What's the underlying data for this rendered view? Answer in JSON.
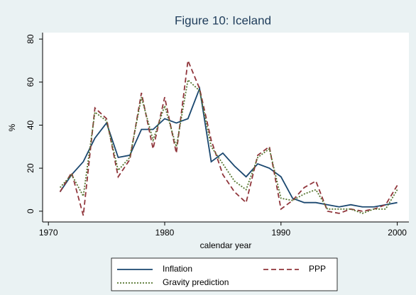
{
  "chart_data": {
    "type": "line",
    "title": "Figure 10: Iceland",
    "x_label": "calendar year",
    "y_label": "%",
    "x": [
      1971,
      1972,
      1973,
      1974,
      1975,
      1976,
      1977,
      1978,
      1979,
      1980,
      1981,
      1982,
      1983,
      1984,
      1985,
      1986,
      1987,
      1988,
      1989,
      1990,
      1991,
      1992,
      1993,
      1994,
      1995,
      1996,
      1997,
      1998,
      1999,
      2000
    ],
    "series": [
      {
        "name": "Inflation",
        "color": "#1a476f",
        "dash": "none",
        "values": [
          9,
          17,
          23,
          34,
          41,
          25,
          26,
          38,
          38,
          43,
          41,
          43,
          57,
          23,
          27,
          21,
          16,
          22,
          20,
          16,
          6,
          4,
          4,
          3,
          2,
          3,
          2,
          2,
          3,
          4
        ]
      },
      {
        "name": "PPP",
        "color": "#90353b",
        "dash": "7 4",
        "values": [
          9,
          18,
          -2,
          48,
          43,
          16,
          24,
          55,
          29,
          53,
          27,
          70,
          57,
          33,
          17,
          9,
          4,
          26,
          30,
          1,
          5,
          11,
          14,
          0,
          -1,
          1,
          0,
          1,
          3,
          12
        ]
      },
      {
        "name": "Gravity prediction",
        "color": "#55752f",
        "dash": "2 2",
        "values": [
          11,
          17,
          7,
          46,
          42,
          19,
          25,
          53,
          33,
          49,
          30,
          61,
          56,
          30,
          22,
          14,
          10,
          25,
          29,
          6,
          5,
          8,
          10,
          1,
          1,
          1,
          -1,
          1,
          1,
          10
        ]
      }
    ],
    "xlim": [
      1969.5,
      2001
    ],
    "xticks": [
      1970,
      1980,
      1990,
      2000
    ],
    "ylim": [
      -5,
      83
    ],
    "yticks": [
      0,
      20,
      40,
      60,
      80
    ]
  }
}
